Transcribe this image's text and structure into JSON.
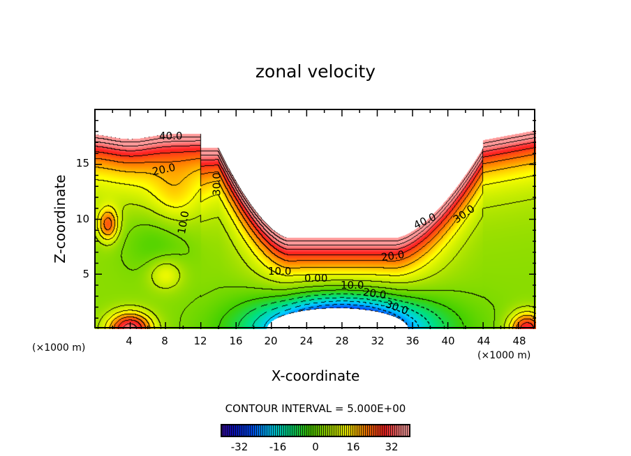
{
  "chart_data": {
    "type": "contour",
    "title": "zonal velocity",
    "xlabel": "X-coordinate",
    "ylabel": "Z-coordinate",
    "x_unit_label": "(×1000 m)",
    "xlim": [
      0,
      50
    ],
    "ylim": [
      0,
      20
    ],
    "x_ticks": [
      "4",
      "8",
      "12",
      "16",
      "20",
      "24",
      "28",
      "32",
      "36",
      "40",
      "44",
      "48"
    ],
    "x_tick_values": [
      4,
      8,
      12,
      16,
      20,
      24,
      28,
      32,
      36,
      40,
      44,
      48
    ],
    "y_ticks": [
      "5",
      "10",
      "15"
    ],
    "y_tick_values": [
      5,
      10,
      15
    ],
    "contour_interval_text": "CONTOUR INTERVAL = 5.000E+00",
    "contour_interval": 5,
    "contour_labels": [
      "40.0",
      "20.0",
      "30.0",
      "10.0",
      "40.0",
      "30.0",
      "20.0",
      "10.0",
      "0.00",
      "10.0",
      "20.0",
      "30.0"
    ],
    "colorbar": {
      "range": [
        -40,
        40
      ],
      "ticks": [
        "-32",
        "-16",
        "0",
        "16",
        "32"
      ],
      "tick_values": [
        -32,
        -16,
        0,
        16,
        32
      ]
    },
    "colormap_stops": [
      [
        -40,
        "#5a0aa0"
      ],
      [
        -32,
        "#1010c0"
      ],
      [
        -24,
        "#0050ff"
      ],
      [
        -16,
        "#00d0ff"
      ],
      [
        -8,
        "#00e080"
      ],
      [
        0,
        "#40d000"
      ],
      [
        8,
        "#a0e000"
      ],
      [
        16,
        "#ffff00"
      ],
      [
        24,
        "#ff8000"
      ],
      [
        32,
        "#ff2020"
      ],
      [
        40,
        "#ff9a9a"
      ]
    ]
  }
}
